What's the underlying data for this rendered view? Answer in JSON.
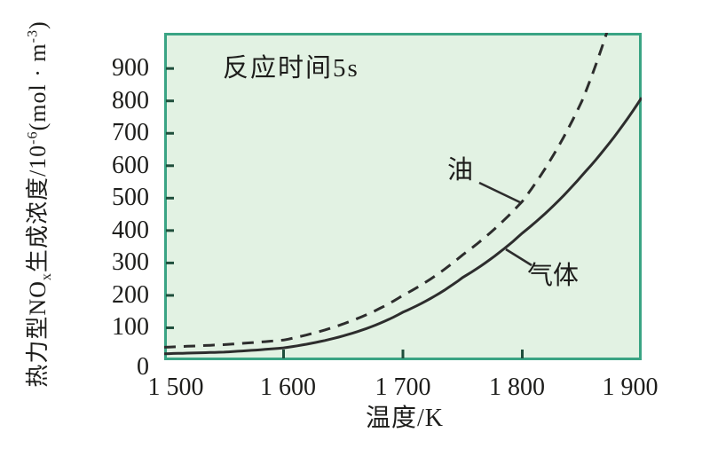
{
  "colors": {
    "plot_background": "#e2f2e3",
    "frame": "#3aa484",
    "curve": "#2d2d2d",
    "tick_mark": "#1f4f3c",
    "text": "#1d1d1b"
  },
  "annotations": {
    "reaction_time": "反应时间5s",
    "oil_label": "油",
    "gas_label": "气体"
  },
  "x_axis": {
    "label": "温度/K"
  },
  "y_axis": {
    "label_parts": {
      "p1": "热力型NO",
      "sub": "x",
      "p2": "生成浓度/10",
      "sup1": "-6",
      "p3": "(mol · m",
      "sup2": "-3",
      "p4": ")"
    }
  },
  "chart_data": {
    "type": "line",
    "title": "反应时间5s",
    "xlabel": "温度/K",
    "ylabel": "热力型NOx生成浓度/10⁻⁶(mol·m⁻³)",
    "xlim": [
      1500,
      1900
    ],
    "ylim": [
      0,
      1010
    ],
    "grid": false,
    "legend_position": "inline-annotations",
    "x_ticks": [
      1500,
      1600,
      1700,
      1800,
      1900
    ],
    "x_tick_labels": [
      "1 500",
      "1 600",
      "1 700",
      "1 800",
      "1 900"
    ],
    "x_ticks_with_marks": [
      1600,
      1700,
      1800
    ],
    "y_ticks": [
      0,
      100,
      200,
      300,
      400,
      500,
      600,
      700,
      800,
      900
    ],
    "series": [
      {
        "name": "油",
        "style": "dashed",
        "x": [
          1500,
          1550,
          1600,
          1650,
          1700,
          1750,
          1800,
          1850,
          1875
        ],
        "values": [
          40,
          48,
          62,
          112,
          200,
          325,
          490,
          800,
          1060
        ]
      },
      {
        "name": "气体",
        "style": "solid",
        "x": [
          1500,
          1550,
          1600,
          1650,
          1700,
          1750,
          1800,
          1850,
          1900
        ],
        "values": [
          20,
          25,
          38,
          75,
          148,
          255,
          392,
          570,
          810
        ]
      }
    ]
  }
}
